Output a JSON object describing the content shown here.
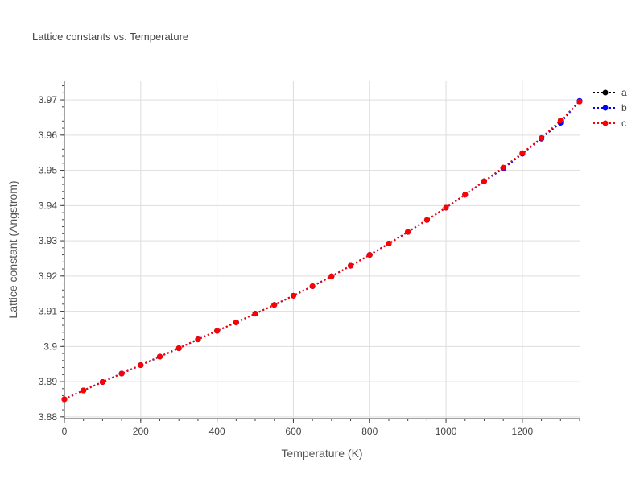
{
  "chart_data": {
    "type": "line",
    "title": "Lattice constants vs. Temperature",
    "xlabel": "Temperature (K)",
    "ylabel": "Lattice constant (Angstrom)",
    "xlim": [
      0,
      1350
    ],
    "ylim": [
      3.8795,
      3.9755
    ],
    "xticks": [
      0,
      200,
      400,
      600,
      800,
      1000,
      1200
    ],
    "xtick_labels": [
      "0",
      "200",
      "400",
      "600",
      "800",
      "1000",
      "1200"
    ],
    "yticks": [
      3.88,
      3.89,
      3.9,
      3.91,
      3.92,
      3.93,
      3.94,
      3.95,
      3.96,
      3.97
    ],
    "ytick_labels": [
      "3.88",
      "3.89",
      "3.9",
      "3.91",
      "3.92",
      "3.93",
      "3.94",
      "3.95",
      "3.96",
      "3.97"
    ],
    "grid": true,
    "legend_position": "right",
    "line_style": "dotted",
    "x": [
      0,
      50,
      100,
      150,
      200,
      250,
      300,
      350,
      400,
      450,
      500,
      550,
      600,
      650,
      700,
      750,
      800,
      850,
      900,
      950,
      1000,
      1050,
      1100,
      1150,
      1200,
      1250,
      1300,
      1350
    ],
    "series": [
      {
        "name": "a",
        "color": "#000000",
        "values": [
          3.885,
          3.8875,
          3.8899,
          3.8923,
          3.8947,
          3.8971,
          3.8995,
          3.902,
          3.9044,
          3.9068,
          3.9093,
          3.9118,
          3.9144,
          3.9171,
          3.9199,
          3.9229,
          3.926,
          3.9292,
          3.9325,
          3.9359,
          3.9394,
          3.9431,
          3.9469,
          3.9507,
          3.9548,
          3.959,
          3.9638,
          3.9697
        ]
      },
      {
        "name": "b",
        "color": "#0000ff",
        "values": [
          3.885,
          3.8875,
          3.8899,
          3.8923,
          3.8947,
          3.8971,
          3.8995,
          3.902,
          3.9044,
          3.9068,
          3.9093,
          3.9118,
          3.9144,
          3.9171,
          3.9199,
          3.9229,
          3.926,
          3.9292,
          3.9325,
          3.9359,
          3.9394,
          3.9431,
          3.9469,
          3.9505,
          3.9547,
          3.9591,
          3.9635,
          3.9697
        ]
      },
      {
        "name": "c",
        "color": "#ff0000",
        "values": [
          3.885,
          3.8875,
          3.8899,
          3.8923,
          3.8947,
          3.8971,
          3.8995,
          3.902,
          3.9044,
          3.9068,
          3.9093,
          3.9118,
          3.9144,
          3.9171,
          3.9199,
          3.9229,
          3.926,
          3.9292,
          3.9325,
          3.9359,
          3.9394,
          3.9431,
          3.9469,
          3.9508,
          3.9549,
          3.9592,
          3.9642,
          3.9695
        ]
      }
    ]
  }
}
